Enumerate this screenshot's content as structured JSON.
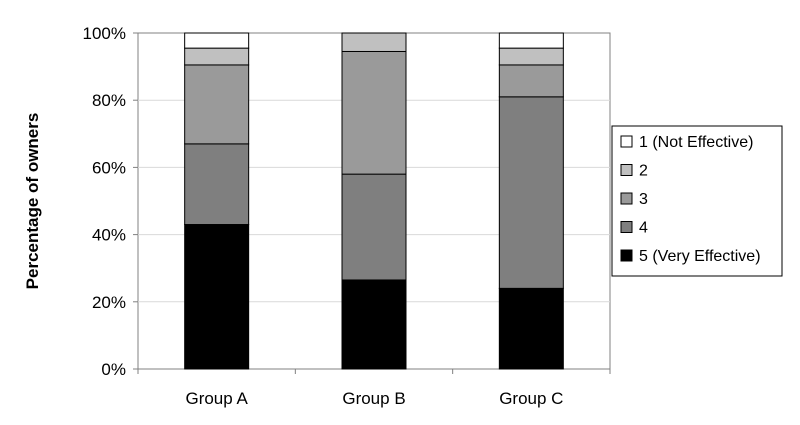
{
  "chart_data": {
    "type": "bar",
    "stacked": true,
    "title": "",
    "xlabel": "",
    "ylabel": "Percentage of owners",
    "ylim": [
      0,
      100
    ],
    "y_ticks": [
      "0%",
      "20%",
      "40%",
      "60%",
      "80%",
      "100%"
    ],
    "y_tick_values": [
      0,
      20,
      40,
      60,
      80,
      100
    ],
    "grid": true,
    "legend_position": "right",
    "categories": [
      "Group A",
      "Group B",
      "Group C"
    ],
    "series": [
      {
        "name": "5 (Very Effective)",
        "color": "#000000",
        "values": [
          43,
          26.5,
          24
        ]
      },
      {
        "name": "4",
        "color": "#7f7f7f",
        "values": [
          24,
          31.5,
          57
        ]
      },
      {
        "name": "3",
        "color": "#9a9a9a",
        "values": [
          23.5,
          36.5,
          9.5
        ]
      },
      {
        "name": "2",
        "color": "#c0c0c0",
        "values": [
          5,
          5.5,
          5
        ]
      },
      {
        "name": "1 (Not Effective)",
        "color": "#ffffff",
        "values": [
          4.5,
          0,
          4.5
        ]
      }
    ],
    "legend_order": [
      "1 (Not Effective)",
      "2",
      "3",
      "4",
      "5 (Very Effective)"
    ]
  }
}
